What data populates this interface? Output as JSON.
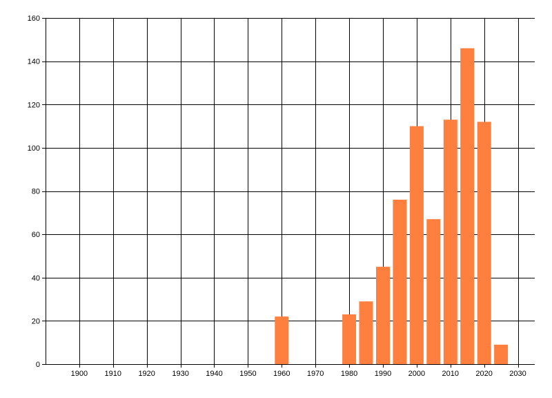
{
  "chart_data": {
    "type": "bar",
    "x": [
      1960,
      1980,
      1985,
      1990,
      1995,
      2000,
      2005,
      2010,
      2015,
      2020,
      2025
    ],
    "values": [
      22,
      23,
      29,
      45,
      76,
      110,
      67,
      113,
      146,
      112,
      9
    ],
    "xlim": [
      1890,
      2035
    ],
    "ylim": [
      0,
      160
    ],
    "x_ticks": [
      "1900",
      "1910",
      "1920",
      "1930",
      "1940",
      "1950",
      "1960",
      "1970",
      "1980",
      "1990",
      "2000",
      "2010",
      "2020",
      "2030"
    ],
    "y_ticks": [
      "0",
      "20",
      "40",
      "60",
      "80",
      "100",
      "120",
      "140",
      "160"
    ],
    "grid": true,
    "bar_color": "#ff7f3f",
    "title": "",
    "xlabel": "",
    "ylabel": ""
  }
}
